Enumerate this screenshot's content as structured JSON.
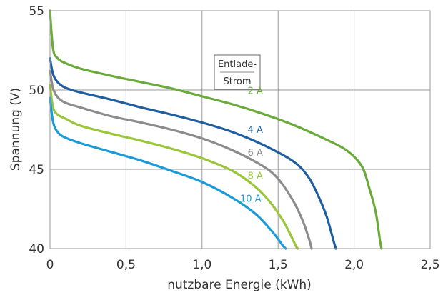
{
  "chart_data": {
    "type": "line",
    "title": "",
    "xlabel": "nutzbare Energie (kWh)",
    "ylabel": "Spannung (V)",
    "xlim": [
      0,
      2.5
    ],
    "ylim": [
      40,
      55
    ],
    "x_ticks": [
      "0",
      "0,5",
      "1,0",
      "1,5",
      "2,0",
      "2,5"
    ],
    "y_ticks": [
      "40",
      "45",
      "50",
      "55"
    ],
    "grid": true,
    "legend_title_line1": "Entlade-",
    "legend_title_line2": "Strom",
    "series": [
      {
        "name": "2 A",
        "color": "#6aaa3a",
        "x": [
          0,
          0.02,
          0.05,
          0.1,
          0.2,
          0.4,
          0.6,
          0.8,
          1.0,
          1.2,
          1.4,
          1.6,
          1.8,
          1.95,
          2.05,
          2.1,
          2.14,
          2.16,
          2.17,
          2.18
        ],
        "y": [
          55.0,
          52.6,
          52.0,
          51.7,
          51.35,
          50.9,
          50.5,
          50.1,
          49.6,
          49.1,
          48.5,
          47.8,
          46.95,
          46.2,
          45.2,
          43.8,
          42.4,
          41.2,
          40.5,
          40.0
        ]
      },
      {
        "name": "4 A",
        "color": "#1f5fa0",
        "x": [
          0,
          0.02,
          0.05,
          0.1,
          0.2,
          0.4,
          0.6,
          0.8,
          1.0,
          1.2,
          1.4,
          1.6,
          1.7,
          1.77,
          1.82,
          1.85,
          1.87,
          1.88
        ],
        "y": [
          52.0,
          51.0,
          50.5,
          50.15,
          49.85,
          49.4,
          48.9,
          48.45,
          47.95,
          47.35,
          46.55,
          45.5,
          44.5,
          43.2,
          42.0,
          41.0,
          40.3,
          40.0
        ]
      },
      {
        "name": "6 A",
        "color": "#8c8c8c",
        "x": [
          0,
          0.02,
          0.05,
          0.1,
          0.2,
          0.4,
          0.6,
          0.8,
          1.0,
          1.2,
          1.4,
          1.5,
          1.6,
          1.66,
          1.69,
          1.71,
          1.72
        ],
        "y": [
          51.2,
          50.1,
          49.55,
          49.2,
          48.9,
          48.35,
          47.95,
          47.5,
          46.95,
          46.2,
          45.2,
          44.4,
          43.0,
          41.8,
          41.0,
          40.4,
          40.0
        ]
      },
      {
        "name": "8 A",
        "color": "#9ac63a",
        "x": [
          0,
          0.02,
          0.05,
          0.1,
          0.2,
          0.4,
          0.6,
          0.8,
          1.0,
          1.2,
          1.35,
          1.45,
          1.53,
          1.58,
          1.61,
          1.62,
          1.63
        ],
        "y": [
          50.3,
          48.9,
          48.45,
          48.2,
          47.75,
          47.25,
          46.8,
          46.3,
          45.7,
          44.9,
          43.9,
          42.9,
          41.8,
          40.9,
          40.3,
          40.1,
          40.0
        ]
      },
      {
        "name": "10 A",
        "color": "#1a9bd7",
        "x": [
          0,
          0.02,
          0.05,
          0.1,
          0.2,
          0.4,
          0.6,
          0.8,
          1.0,
          1.2,
          1.35,
          1.45,
          1.5,
          1.53,
          1.55
        ],
        "y": [
          49.5,
          48.0,
          47.35,
          47.0,
          46.65,
          46.1,
          45.55,
          44.9,
          44.2,
          43.2,
          42.2,
          41.2,
          40.6,
          40.2,
          40.0
        ]
      }
    ]
  }
}
